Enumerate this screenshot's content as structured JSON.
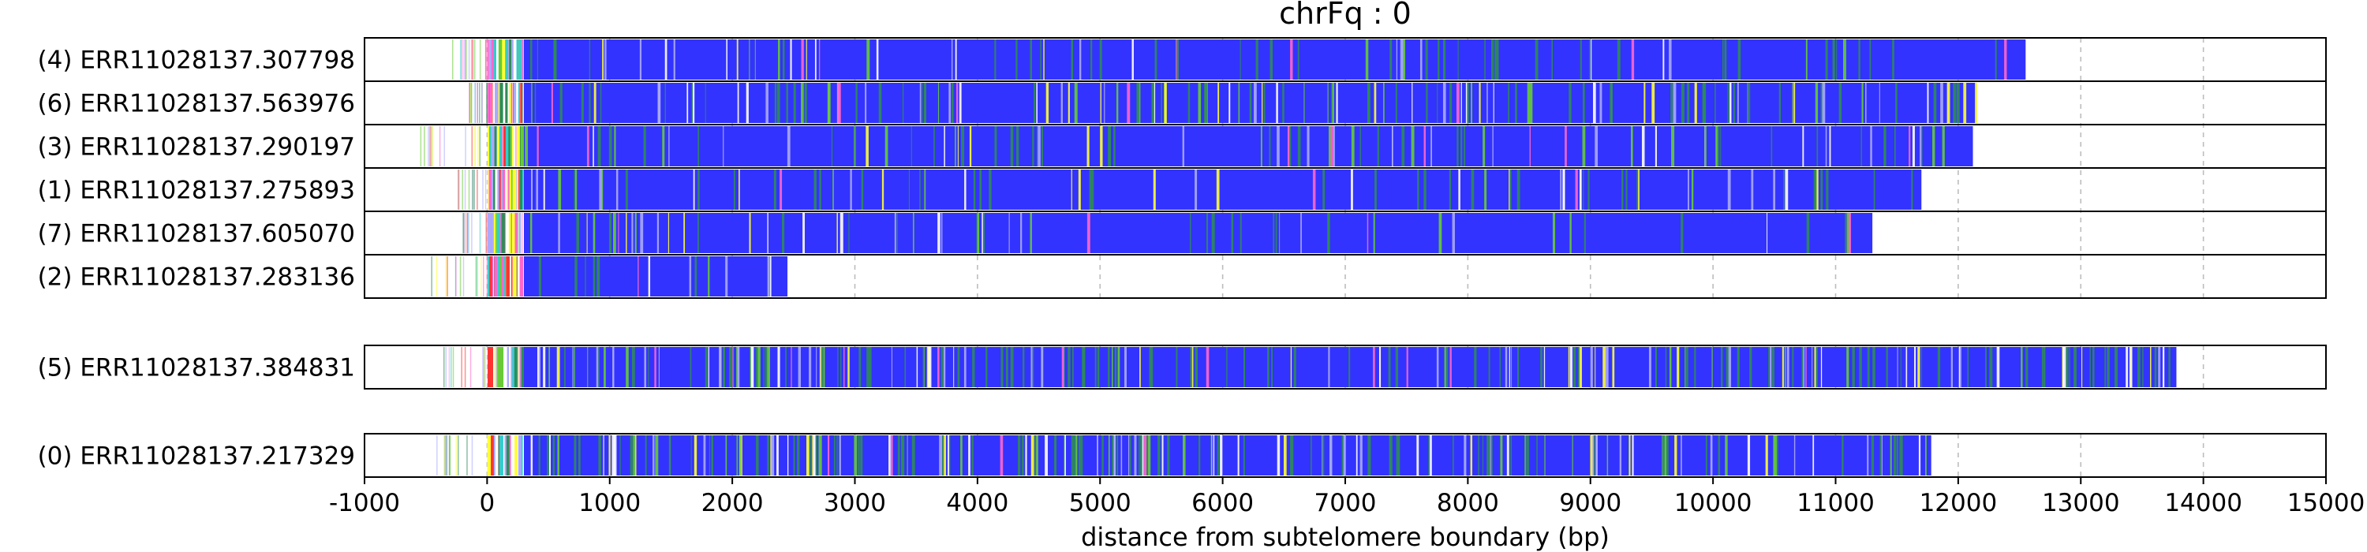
{
  "chart_data": {
    "type": "heatmap",
    "title": "chrFq : 0",
    "xlabel": "distance from subtelomere boundary (bp)",
    "xlim": [
      -1000,
      15000
    ],
    "xticks": [
      -1000,
      0,
      1000,
      2000,
      3000,
      4000,
      5000,
      6000,
      7000,
      8000,
      9000,
      10000,
      11000,
      12000,
      13000,
      14000,
      15000
    ],
    "grid": "x dashed",
    "groups": [
      {
        "reads": [
          {
            "label": "(4) ERR11028137.307798",
            "start": -300,
            "end": 12550,
            "variant_share": 0.12
          },
          {
            "label": "(6) ERR11028137.563976",
            "start": -150,
            "end": 12150,
            "variant_share": 0.22
          },
          {
            "label": "(3) ERR11028137.290197",
            "start": -550,
            "end": 12120,
            "variant_share": 0.14
          },
          {
            "label": "(1) ERR11028137.275893",
            "start": -250,
            "end": 11700,
            "variant_share": 0.12
          },
          {
            "label": "(7) ERR11028137.605070",
            "start": -200,
            "end": 11300,
            "variant_share": 0.1
          },
          {
            "label": "(2) ERR11028137.283136",
            "start": -500,
            "end": 2450,
            "variant_share": 0.12
          }
        ]
      },
      {
        "reads": [
          {
            "label": "(5) ERR11028137.384831",
            "start": -400,
            "end": 13780,
            "variant_share": 0.3
          }
        ]
      },
      {
        "reads": [
          {
            "label": "(0) ERR11028137.217329",
            "start": -450,
            "end": 11780,
            "variant_share": 0.32
          }
        ]
      }
    ],
    "colors": {
      "canonical": "#3333ff",
      "variants": [
        "#2e8b57",
        "#66cc33",
        "#ffff33",
        "#ff66cc",
        "#ff3333",
        "#aaaaff",
        "#ffffff",
        "#33cccc"
      ]
    }
  }
}
